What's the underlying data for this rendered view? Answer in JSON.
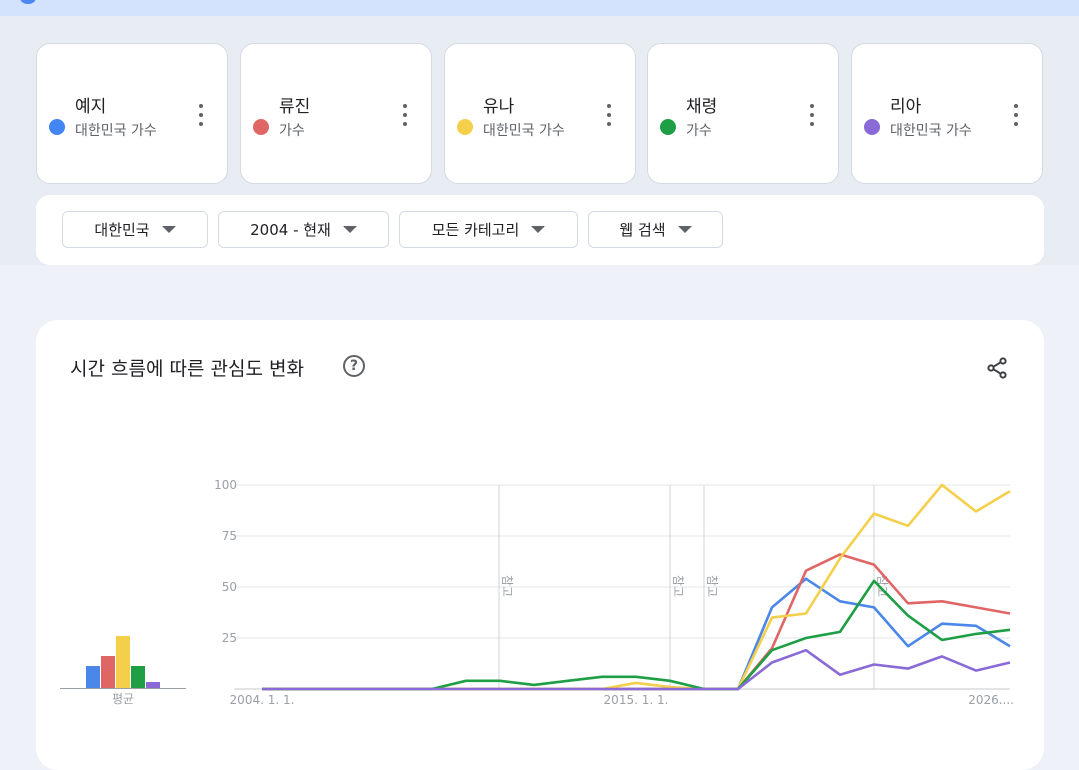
{
  "terms": [
    {
      "name": "예지",
      "subtitle": "대한민국 가수",
      "color": "#4285f4"
    },
    {
      "name": "류진",
      "subtitle": "가수",
      "color": "#e06666"
    },
    {
      "name": "유나",
      "subtitle": "대한민국 가수",
      "color": "#f4cf4a"
    },
    {
      "name": "채령",
      "subtitle": "가수",
      "color": "#1e9e45"
    },
    {
      "name": "리아",
      "subtitle": "대한민국 가수",
      "color": "#8a6ad6"
    }
  ],
  "filters": {
    "region": "대한민국",
    "time_range": "2004 - 현재",
    "category": "모든 카테고리",
    "search_type": "웹 검색"
  },
  "chart_card": {
    "title": "시간 흐름에 따른 관심도 변화",
    "help_glyph": "?",
    "share_icon": "share-icon"
  },
  "chart_data": {
    "type": "line",
    "title": "시간 흐름에 따른 관심도 변화",
    "ylim": [
      0,
      100
    ],
    "y_ticks": [
      25,
      50,
      75,
      100
    ],
    "x_tick_labels": [
      "2004. 1. 1.",
      "2015. 1. 1.",
      "2026...."
    ],
    "grid": true,
    "annotations": [
      "참고",
      "참고",
      "참고",
      "참고"
    ],
    "average_label": "평균",
    "averages": [
      {
        "name": "예지",
        "value": 11
      },
      {
        "name": "류진",
        "value": 16
      },
      {
        "name": "유나",
        "value": 26
      },
      {
        "name": "채령",
        "value": 11
      },
      {
        "name": "리아",
        "value": 3
      }
    ],
    "series": [
      {
        "name": "예지",
        "color": "#4a87e8",
        "values": [
          0,
          0,
          0,
          0,
          0,
          0,
          0,
          0,
          0,
          0,
          0,
          0,
          0,
          0,
          0,
          40,
          54,
          43,
          40,
          21,
          32,
          31,
          21
        ]
      },
      {
        "name": "류진",
        "color": "#e06666",
        "values": [
          0,
          0,
          0,
          0,
          0,
          0,
          0,
          0,
          0,
          0,
          0,
          0,
          0,
          0,
          0,
          20,
          58,
          66,
          61,
          42,
          43,
          40,
          37
        ]
      },
      {
        "name": "유나",
        "color": "#f4cf4a",
        "values": [
          0,
          0,
          0,
          0,
          0,
          0,
          0,
          0,
          0,
          0,
          0,
          3,
          1,
          0,
          0,
          35,
          37,
          64,
          86,
          80,
          100,
          87,
          97
        ]
      },
      {
        "name": "채령",
        "color": "#1e9e45",
        "values": [
          0,
          0,
          0,
          0,
          0,
          0,
          4,
          4,
          2,
          4,
          6,
          6,
          4,
          0,
          0,
          19,
          25,
          28,
          53,
          36,
          24,
          27,
          29
        ]
      },
      {
        "name": "리아",
        "color": "#8a6ad6",
        "values": [
          0,
          0,
          0,
          0,
          0,
          0,
          0,
          0,
          0,
          0,
          0,
          0,
          0,
          0,
          0,
          13,
          19,
          7,
          12,
          10,
          16,
          9,
          13
        ]
      }
    ]
  }
}
